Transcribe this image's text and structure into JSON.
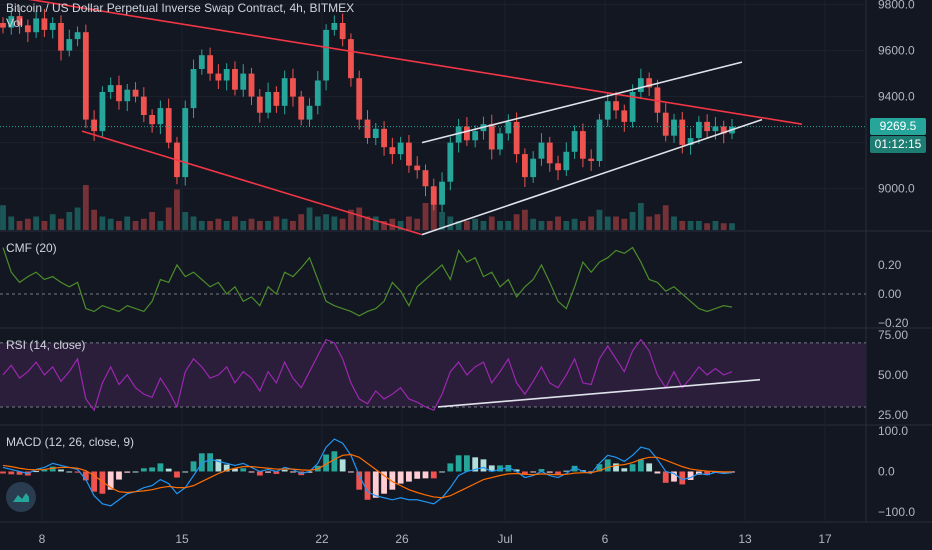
{
  "header": {
    "title": "Bitcoin / US Dollar Perpetual Inverse Swap Contract, 4h, BITMEX",
    "volume_label": "Vol"
  },
  "panes": {
    "cmf_label": "CMF (20)",
    "rsi_label": "RSI (14, close)",
    "macd_label": "MACD (12, 26, close, 9)"
  },
  "price_tags": {
    "last_price": "9269.5",
    "countdown": "01:12:15"
  },
  "colors": {
    "background": "#131722",
    "up": "#26a69a",
    "down": "#ef5350",
    "trendline_red": "#f23645",
    "channel_white": "#e0e3eb",
    "cmf_line": "#4c8c2b",
    "rsi_line": "#9c27b0",
    "rsi_band": "#2a1e3a",
    "macd_line": "#2196f3",
    "signal_line": "#ff6d00",
    "last_price_tag": "#26a69a",
    "countdown_tag": "#1e7d72"
  },
  "chart_data": [
    {
      "type": "candlestick",
      "pane": "price",
      "x_ticks": [
        "8",
        "15",
        "22",
        "26",
        "Jul",
        "6",
        "13",
        "17"
      ],
      "y_ticks": [
        9000,
        9200,
        9400,
        9600,
        9800
      ],
      "y_tick_labels": [
        "9000.0",
        "9200.0",
        "9400.0",
        "9600.0",
        "9800.0"
      ],
      "ylim": [
        8820,
        9820
      ],
      "last_price": 9269.5,
      "path_open_close": [
        9700,
        9750,
        9710,
        9680,
        9740,
        9690,
        9720,
        9600,
        9650,
        9680,
        9300,
        9250,
        9420,
        9450,
        9380,
        9430,
        9400,
        9320,
        9280,
        9350,
        9200,
        9050,
        9350,
        9520,
        9580,
        9500,
        9470,
        9520,
        9430,
        9500,
        9400,
        9330,
        9420,
        9360,
        9480,
        9400,
        9300,
        9360,
        9470,
        9690,
        9720,
        9650,
        9480,
        9300,
        9220,
        9260,
        9180,
        9150,
        9200,
        9100,
        9080,
        9010,
        8930,
        9030,
        9200,
        9270,
        9210,
        9250,
        9280,
        9170,
        9240,
        9290,
        9150,
        9050,
        9130,
        9200,
        9110,
        9080,
        9160,
        9250,
        9130,
        9120,
        9300,
        9380,
        9340,
        9290,
        9420,
        9480,
        9440,
        9330,
        9230,
        9300,
        9190,
        9220,
        9290,
        9250,
        9270,
        9240,
        9269.5
      ],
      "volume_max": 1,
      "volume": [
        0.55,
        0.3,
        0.2,
        0.25,
        0.3,
        0.2,
        0.35,
        0.25,
        0.4,
        0.5,
        1.0,
        0.45,
        0.3,
        0.25,
        0.2,
        0.3,
        0.2,
        0.25,
        0.4,
        0.2,
        0.5,
        0.9,
        0.4,
        0.3,
        0.2,
        0.2,
        0.25,
        0.2,
        0.3,
        0.2,
        0.25,
        0.2,
        0.2,
        0.3,
        0.25,
        0.2,
        0.35,
        0.5,
        0.3,
        0.35,
        0.3,
        0.25,
        0.45,
        0.5,
        0.3,
        0.3,
        0.2,
        0.25,
        0.2,
        0.3,
        0.25,
        0.6,
        0.8,
        0.4,
        0.3,
        0.2,
        0.2,
        0.25,
        0.2,
        0.3,
        0.2,
        0.2,
        0.35,
        0.45,
        0.25,
        0.2,
        0.2,
        0.3,
        0.2,
        0.25,
        0.2,
        0.3,
        0.45,
        0.3,
        0.3,
        0.25,
        0.4,
        0.6,
        0.3,
        0.35,
        0.55,
        0.3,
        0.2,
        0.2,
        0.2,
        0.15,
        0.2,
        0.15,
        0.15
      ],
      "trendlines": [
        {
          "color": "red",
          "from": [
            "2020-06-04",
            9870
          ],
          "to": [
            "2020-07-16",
            9280
          ]
        },
        {
          "color": "red",
          "from": [
            "2020-06-10",
            9250
          ],
          "to": [
            "2020-06-27",
            8800
          ]
        },
        {
          "color": "white",
          "from": [
            "2020-06-27",
            9200
          ],
          "to": [
            "2020-07-13",
            9550
          ]
        },
        {
          "color": "white",
          "from": [
            "2020-06-27",
            8800
          ],
          "to": [
            "2020-07-14",
            9300
          ]
        }
      ]
    },
    {
      "type": "line",
      "pane": "CMF (20)",
      "y_ticks": [
        -0.2,
        0,
        0.2
      ],
      "y_tick_labels": [
        "−0.20",
        "0.00",
        "0.20"
      ],
      "ylim": [
        -0.22,
        0.42
      ],
      "values": [
        0.32,
        0.15,
        0.08,
        0.12,
        0.15,
        0.1,
        0.12,
        0.08,
        0.05,
        0.08,
        -0.1,
        -0.12,
        -0.08,
        -0.1,
        -0.12,
        -0.08,
        -0.1,
        -0.12,
        -0.05,
        0.1,
        0.08,
        0.2,
        0.12,
        0.15,
        0.1,
        0.05,
        0.08,
        0.0,
        0.05,
        -0.05,
        -0.02,
        -0.08,
        0.05,
        0.0,
        0.15,
        0.12,
        0.18,
        0.25,
        0.1,
        -0.05,
        -0.08,
        -0.1,
        -0.12,
        -0.15,
        -0.12,
        -0.1,
        -0.05,
        0.08,
        0.02,
        -0.08,
        0.05,
        0.1,
        0.15,
        0.2,
        0.1,
        0.3,
        0.22,
        0.25,
        0.12,
        0.15,
        0.05,
        0.1,
        -0.02,
        0.05,
        0.1,
        0.2,
        0.08,
        -0.05,
        -0.1,
        0.05,
        0.22,
        0.15,
        0.22,
        0.25,
        0.3,
        0.28,
        0.32,
        0.22,
        0.1,
        0.08,
        0.02,
        0.05,
        0.0,
        -0.05,
        -0.1,
        -0.12,
        -0.1,
        -0.08,
        -0.09
      ]
    },
    {
      "type": "line",
      "pane": "RSI (14, close)",
      "y_ticks": [
        25,
        50,
        75
      ],
      "y_tick_labels": [
        "25.00",
        "50.00",
        "75.00"
      ],
      "ylim": [
        20,
        78
      ],
      "band": [
        30,
        70
      ],
      "values": [
        50,
        56,
        48,
        52,
        58,
        50,
        55,
        46,
        52,
        60,
        35,
        28,
        45,
        55,
        44,
        50,
        42,
        38,
        36,
        48,
        40,
        30,
        52,
        60,
        55,
        48,
        50,
        55,
        45,
        52,
        48,
        40,
        52,
        45,
        58,
        48,
        42,
        52,
        62,
        72,
        70,
        60,
        45,
        35,
        32,
        40,
        35,
        38,
        42,
        35,
        33,
        30,
        28,
        38,
        52,
        58,
        50,
        55,
        58,
        45,
        52,
        60,
        45,
        38,
        46,
        55,
        45,
        42,
        50,
        60,
        45,
        44,
        60,
        68,
        60,
        52,
        65,
        72,
        65,
        50,
        42,
        52,
        42,
        48,
        55,
        50,
        54,
        50,
        52
      ]
    },
    {
      "type": "bar+line",
      "pane": "MACD (12, 26, close, 9)",
      "y_ticks": [
        -100,
        0,
        100
      ],
      "y_tick_labels": [
        "−100.0",
        "0.0",
        "100.0"
      ],
      "ylim": [
        -120,
        110
      ],
      "macd": [
        10,
        5,
        0,
        -5,
        5,
        10,
        20,
        15,
        10,
        5,
        -20,
        -60,
        -80,
        -85,
        -70,
        -55,
        -50,
        -40,
        -35,
        -20,
        -30,
        -55,
        -40,
        -10,
        20,
        30,
        25,
        20,
        15,
        20,
        10,
        0,
        5,
        0,
        10,
        5,
        -5,
        0,
        20,
        60,
        80,
        70,
        40,
        -10,
        -50,
        -60,
        -65,
        -70,
        -65,
        -70,
        -70,
        -75,
        -80,
        -65,
        -40,
        -10,
        0,
        5,
        10,
        0,
        5,
        10,
        0,
        -15,
        -10,
        0,
        -10,
        -15,
        -5,
        10,
        0,
        -5,
        20,
        40,
        35,
        25,
        40,
        60,
        55,
        30,
        0,
        -5,
        -20,
        -15,
        -5,
        -8,
        -2,
        -5,
        -3
      ],
      "signal": [
        15,
        12,
        8,
        5,
        4,
        5,
        8,
        10,
        10,
        8,
        2,
        -10,
        -25,
        -40,
        -50,
        -52,
        -50,
        -48,
        -45,
        -40,
        -37,
        -40,
        -40,
        -35,
        -25,
        -15,
        -5,
        3,
        8,
        12,
        12,
        10,
        8,
        6,
        6,
        6,
        4,
        3,
        6,
        18,
        30,
        40,
        42,
        35,
        20,
        5,
        -10,
        -25,
        -35,
        -45,
        -52,
        -58,
        -63,
        -65,
        -60,
        -50,
        -40,
        -30,
        -20,
        -15,
        -10,
        -6,
        -5,
        -7,
        -8,
        -6,
        -7,
        -8,
        -7,
        -4,
        -3,
        -3,
        2,
        10,
        15,
        17,
        22,
        30,
        35,
        35,
        28,
        20,
        12,
        6,
        3,
        1,
        0,
        -1,
        -1
      ]
    }
  ]
}
